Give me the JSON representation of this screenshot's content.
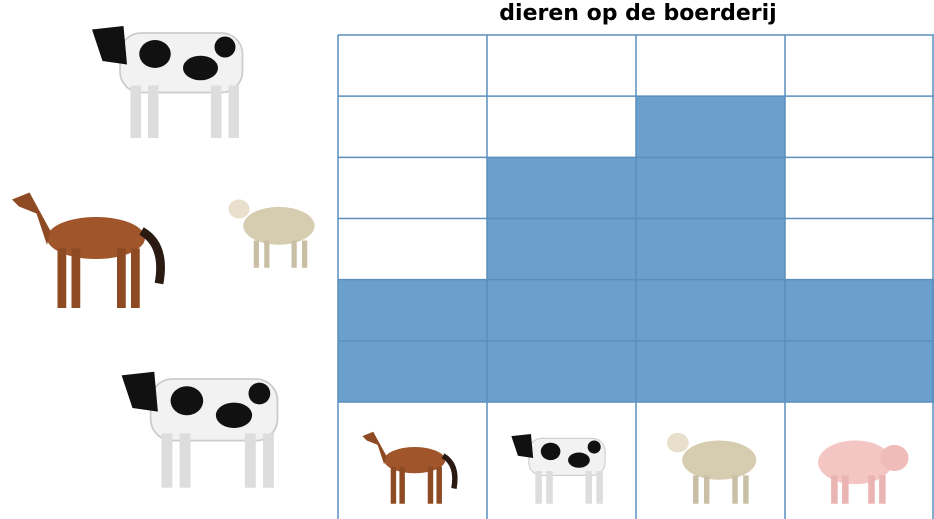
{
  "chart_data": {
    "type": "bar",
    "title": "dieren op de boerderij",
    "categories": [
      null,
      null,
      null,
      null
    ],
    "values": [
      2,
      4,
      5,
      2
    ],
    "color": "#6b9fcc",
    "ylim": [
      0,
      6
    ],
    "yticks": [
      0,
      1,
      2,
      3,
      4,
      5,
      6
    ],
    "grid": true
  }
}
